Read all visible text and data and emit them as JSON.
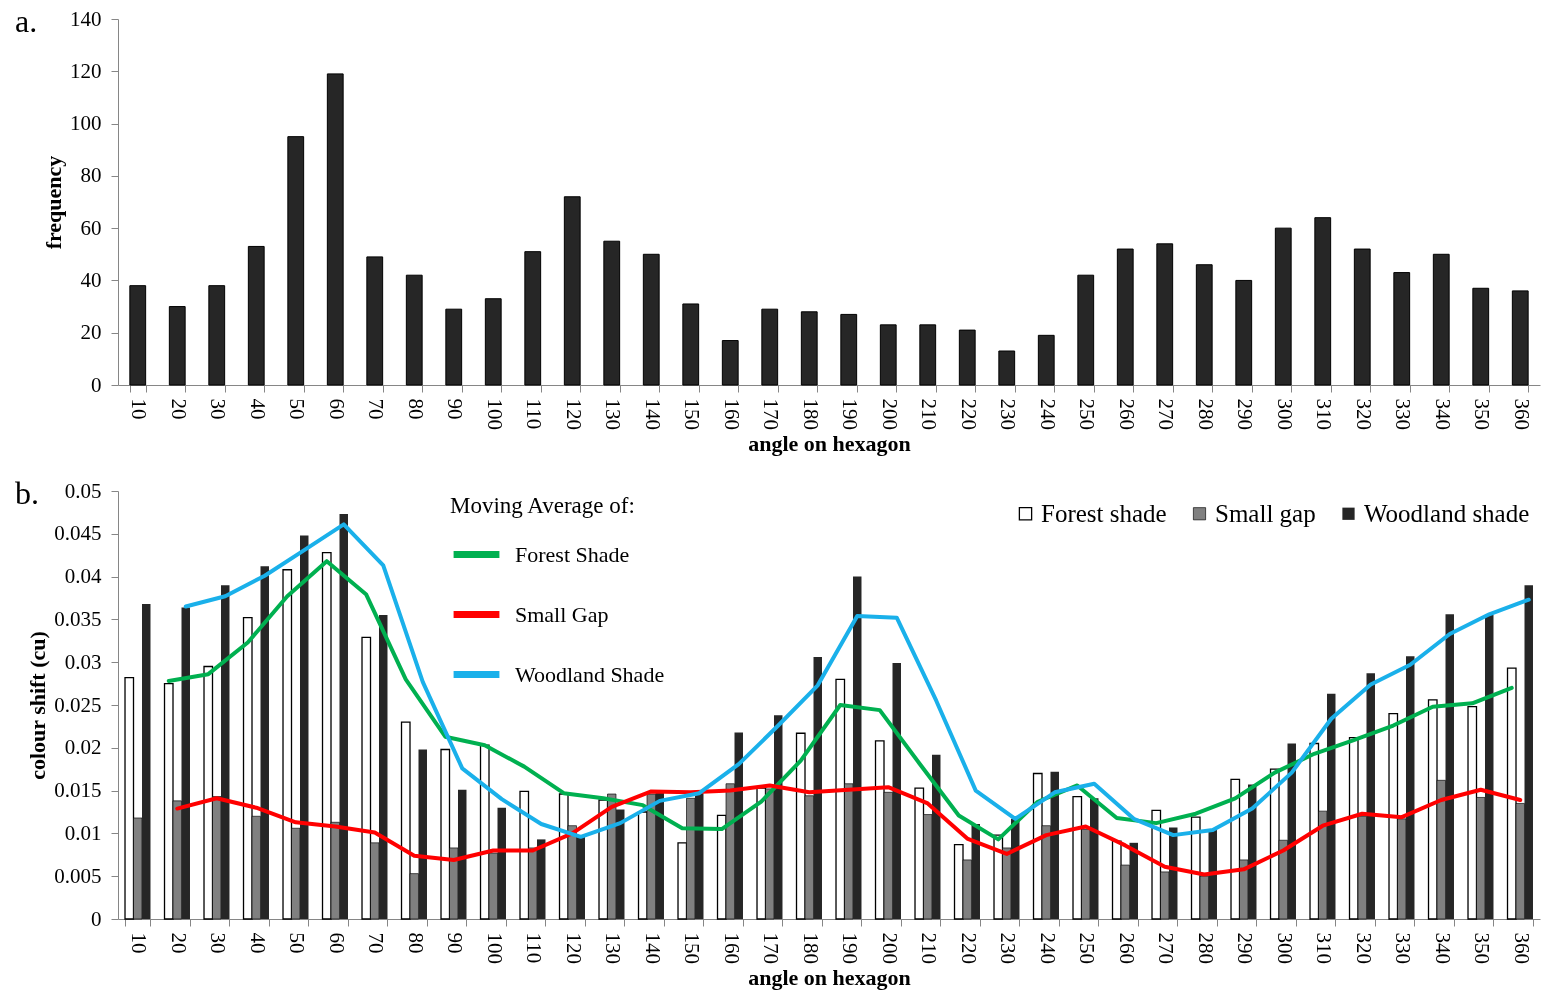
{
  "chart_data": [
    {
      "type": "bar",
      "title": "a.",
      "xlabel": "angle on hexagon",
      "ylabel": "frequency",
      "categories": [
        "10",
        "20",
        "30",
        "40",
        "50",
        "60",
        "70",
        "80",
        "90",
        "100",
        "110",
        "120",
        "130",
        "140",
        "150",
        "160",
        "170",
        "180",
        "190",
        "200",
        "210",
        "220",
        "230",
        "240",
        "250",
        "260",
        "270",
        "280",
        "290",
        "300",
        "310",
        "320",
        "330",
        "340",
        "350",
        "360"
      ],
      "values": [
        38,
        30,
        38,
        53,
        95,
        119,
        49,
        42,
        29,
        33,
        51,
        72,
        55,
        50,
        31,
        17,
        29,
        28,
        27,
        23,
        23,
        21,
        13,
        19,
        42,
        52,
        54,
        46,
        40,
        60,
        64,
        52,
        43,
        50,
        37,
        36
      ],
      "color": "#262626",
      "ylim": [
        0,
        140
      ],
      "yticks": [
        0,
        20,
        40,
        60,
        80,
        100,
        120,
        140
      ]
    },
    {
      "type": "bar",
      "title": "b.",
      "xlabel": "angle on hexagon",
      "ylabel": "colour shift (cu)",
      "legend_title": "Moving Average of:",
      "legend": "top",
      "categories": [
        "10",
        "20",
        "30",
        "40",
        "50",
        "60",
        "70",
        "80",
        "90",
        "100",
        "110",
        "120",
        "130",
        "140",
        "150",
        "160",
        "170",
        "180",
        "190",
        "200",
        "210",
        "220",
        "230",
        "240",
        "250",
        "260",
        "270",
        "280",
        "290",
        "300",
        "310",
        "320",
        "330",
        "340",
        "350",
        "360"
      ],
      "series": [
        {
          "name": "Forest shade",
          "color": "#ffffff",
          "values": [
            0.0282,
            0.0275,
            0.0295,
            0.0352,
            0.0408,
            0.0428,
            0.0329,
            0.023,
            0.0198,
            0.0203,
            0.0149,
            0.0146,
            0.0139,
            0.0125,
            0.0089,
            0.0121,
            0.0153,
            0.0217,
            0.028,
            0.0208,
            0.0153,
            0.0087,
            0.0098,
            0.017,
            0.0143,
            0.0091,
            0.0127,
            0.0119,
            0.0163,
            0.0175,
            0.0205,
            0.0212,
            0.024,
            0.0256,
            0.0248,
            0.0293
          ]
        },
        {
          "name": "Small gap",
          "color": "#808080",
          "values": [
            0.0118,
            0.0138,
            0.0143,
            0.012,
            0.0106,
            0.0113,
            0.0089,
            0.0053,
            0.0083,
            0.0077,
            0.0083,
            0.0109,
            0.0146,
            0.0146,
            0.0141,
            0.0158,
            0.0152,
            0.0144,
            0.0158,
            0.0148,
            0.0122,
            0.0069,
            0.0083,
            0.0109,
            0.0105,
            0.0063,
            0.0055,
            0.005,
            0.0069,
            0.0092,
            0.0126,
            0.012,
            0.0117,
            0.0162,
            0.0142,
            0.0135
          ]
        },
        {
          "name": "Woodland shade",
          "color": "#262626",
          "values": [
            0.0368,
            0.0364,
            0.039,
            0.0412,
            0.0448,
            0.0473,
            0.0355,
            0.0198,
            0.0151,
            0.013,
            0.0093,
            0.0097,
            0.0128,
            0.0148,
            0.0147,
            0.0218,
            0.0238,
            0.0306,
            0.04,
            0.0299,
            0.0192,
            0.0111,
            0.0117,
            0.0172,
            0.0141,
            0.0089,
            0.0107,
            0.0104,
            0.0157,
            0.0205,
            0.0263,
            0.0287,
            0.0307,
            0.0356,
            0.0355,
            0.039
          ]
        },
        {
          "name": "Forest Shade",
          "type": "line",
          "color": "#00b050",
          "values": [
            null,
            0.0278,
            0.0286,
            0.0323,
            0.0377,
            0.0418,
            0.0379,
            0.028,
            0.0213,
            0.0203,
            0.0178,
            0.0147,
            0.0141,
            0.0133,
            0.0106,
            0.0105,
            0.0137,
            0.0185,
            0.025,
            0.0244,
            0.0182,
            0.0121,
            0.0093,
            0.0137,
            0.0156,
            0.0118,
            0.0112,
            0.0123,
            0.0141,
            0.0171,
            0.0193,
            0.0209,
            0.0226,
            0.0248,
            0.0252,
            0.027
          ]
        },
        {
          "name": "Small Gap",
          "type": "line",
          "color": "#ff0000",
          "values": [
            null,
            0.0129,
            0.0141,
            0.013,
            0.0113,
            0.0108,
            0.0101,
            0.0074,
            0.0069,
            0.008,
            0.008,
            0.01,
            0.0131,
            0.0149,
            0.0148,
            0.015,
            0.0156,
            0.0148,
            0.0151,
            0.0154,
            0.0135,
            0.0094,
            0.0076,
            0.0098,
            0.0108,
            0.0086,
            0.0061,
            0.0052,
            0.0058,
            0.008,
            0.0109,
            0.0123,
            0.0119,
            0.0139,
            0.0151,
            0.0139
          ]
        },
        {
          "name": "Woodland Shade",
          "type": "line",
          "color": "#1ab0ea",
          "values": [
            null,
            0.0365,
            0.0377,
            0.0401,
            0.0431,
            0.0461,
            0.0413,
            0.0277,
            0.0176,
            0.014,
            0.0111,
            0.0096,
            0.0112,
            0.0138,
            0.0147,
            0.0181,
            0.0226,
            0.0273,
            0.0354,
            0.0352,
            0.0255,
            0.015,
            0.0117,
            0.0148,
            0.0158,
            0.0117,
            0.0098,
            0.0104,
            0.0129,
            0.0171,
            0.0234,
            0.0274,
            0.0297,
            0.0333,
            0.0356,
            0.0373
          ]
        }
      ],
      "ylim": [
        0,
        0.05
      ],
      "yticks": [
        0,
        0.005,
        0.01,
        0.015,
        0.02,
        0.025,
        0.03,
        0.035,
        0.04,
        0.045,
        0.05
      ]
    }
  ]
}
